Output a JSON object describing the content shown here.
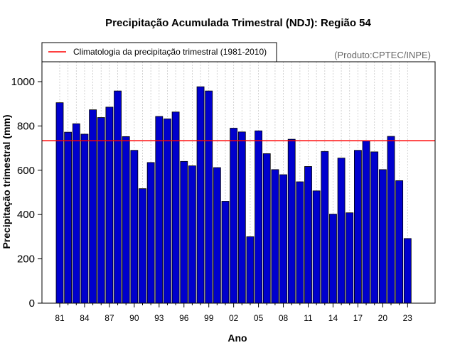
{
  "chart_data": {
    "type": "bar",
    "title": "Precipitação Acumulada Trimestral (NDJ): Região 54",
    "xlabel": "Ano",
    "ylabel": "Precipitação trimestral (mm)",
    "source_note": "(Produto:CPTEC/INPE)",
    "ylim": [
      0,
      1100
    ],
    "yticks": [
      0,
      200,
      400,
      600,
      800,
      1000
    ],
    "xtick_labels": [
      "81",
      "84",
      "87",
      "90",
      "93",
      "96",
      "99",
      "02",
      "05",
      "08",
      "11",
      "14",
      "17",
      "20",
      "23"
    ],
    "grid": true,
    "categories": [
      1981,
      1982,
      1983,
      1984,
      1985,
      1986,
      1987,
      1988,
      1989,
      1990,
      1991,
      1992,
      1993,
      1994,
      1995,
      1996,
      1997,
      1998,
      1999,
      2000,
      2001,
      2002,
      2003,
      2004,
      2005,
      2006,
      2007,
      2008,
      2009,
      2010,
      2011,
      2012,
      2013,
      2014,
      2015,
      2016,
      2017,
      2018,
      2019,
      2020,
      2021,
      2022,
      2023
    ],
    "values": [
      905,
      772,
      810,
      763,
      873,
      838,
      885,
      958,
      752,
      690,
      517,
      635,
      843,
      832,
      863,
      640,
      620,
      977,
      958,
      612,
      460,
      790,
      773,
      300,
      778,
      675,
      603,
      580,
      740,
      548,
      617,
      507,
      685,
      402,
      655,
      408,
      690,
      732,
      683,
      603,
      753,
      553,
      292
    ],
    "climatology": {
      "label": "Climatologia da precipitação trimestral (1981-2010)",
      "value": 733
    },
    "legend_position": "top-left",
    "colors": {
      "bar": "#0000CD",
      "bar_border": "#000000",
      "climatology_line": "#FF0000",
      "grid": "#C8C8C8"
    }
  }
}
